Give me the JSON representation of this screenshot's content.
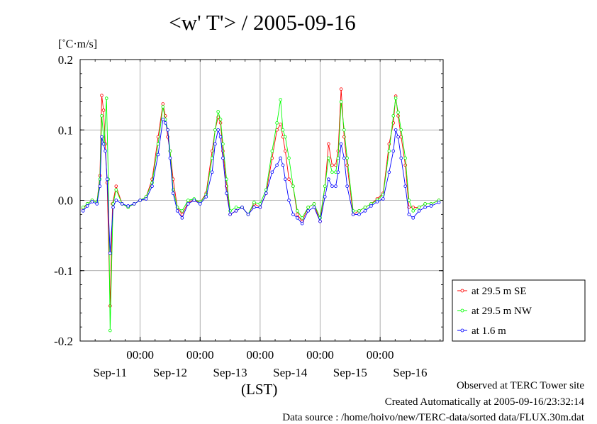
{
  "chart_data": {
    "type": "line",
    "title": "<w' T'> / 2005-09-16",
    "ylabel": "[˚C·m/s]",
    "xlabel": "(LST)",
    "ylim": [
      -0.2,
      0.2
    ],
    "yticks": [
      "0.2",
      "0.1",
      "0.0",
      "-0.1",
      "-0.2"
    ],
    "xlim_days": [
      0,
      6.05
    ],
    "xtick_time_label": "00:00",
    "xtick_times": [
      1,
      2,
      3,
      4,
      5
    ],
    "day_labels": [
      "Sep-11",
      "Sep-12",
      "Sep-13",
      "Sep-14",
      "Sep-15",
      "Sep-16"
    ],
    "day_label_positions": [
      0.5,
      1.5,
      2.5,
      3.5,
      4.5,
      5.5
    ],
    "grid": true,
    "legend_position": "right",
    "series": [
      {
        "name": "at 29.5 m SE",
        "color": "#ff0000",
        "points": [
          [
            0.05,
            -0.012
          ],
          [
            0.12,
            -0.005
          ],
          [
            0.2,
            0
          ],
          [
            0.28,
            -0.003
          ],
          [
            0.33,
            0.035
          ],
          [
            0.36,
            0.149
          ],
          [
            0.39,
            0.128
          ],
          [
            0.42,
            0.08
          ],
          [
            0.45,
            0.025
          ],
          [
            0.5,
            -0.15
          ],
          [
            0.54,
            -0.005
          ],
          [
            0.6,
            0.02
          ],
          [
            0.7,
            -0.005
          ],
          [
            0.8,
            -0.01
          ],
          [
            0.9,
            -0.005
          ],
          [
            1.0,
            0
          ],
          [
            1.1,
            0.005
          ],
          [
            1.2,
            0.03
          ],
          [
            1.3,
            0.09
          ],
          [
            1.38,
            0.137
          ],
          [
            1.42,
            0.12
          ],
          [
            1.46,
            0.09
          ],
          [
            1.5,
            0.07
          ],
          [
            1.55,
            0.03
          ],
          [
            1.62,
            -0.01
          ],
          [
            1.7,
            -0.02
          ],
          [
            1.8,
            -0.003
          ],
          [
            1.9,
            0
          ],
          [
            2.0,
            -0.003
          ],
          [
            2.1,
            0.01
          ],
          [
            2.2,
            0.07
          ],
          [
            2.25,
            0.1
          ],
          [
            2.3,
            0.118
          ],
          [
            2.34,
            0.11
          ],
          [
            2.38,
            0.07
          ],
          [
            2.44,
            0.02
          ],
          [
            2.5,
            -0.02
          ],
          [
            2.6,
            -0.015
          ],
          [
            2.7,
            -0.01
          ],
          [
            2.8,
            -0.02
          ],
          [
            2.9,
            -0.005
          ],
          [
            3.0,
            -0.01
          ],
          [
            3.1,
            0.01
          ],
          [
            3.2,
            0.06
          ],
          [
            3.28,
            0.1
          ],
          [
            3.34,
            0.108
          ],
          [
            3.38,
            0.09
          ],
          [
            3.42,
            0.07
          ],
          [
            3.48,
            0.03
          ],
          [
            3.55,
            0.02
          ],
          [
            3.62,
            -0.02
          ],
          [
            3.7,
            -0.03
          ],
          [
            3.8,
            -0.01
          ],
          [
            3.9,
            -0.005
          ],
          [
            4.0,
            -0.03
          ],
          [
            4.08,
            0.02
          ],
          [
            4.14,
            0.08
          ],
          [
            4.2,
            0.05
          ],
          [
            4.26,
            0.05
          ],
          [
            4.3,
            0.07
          ],
          [
            4.35,
            0.158
          ],
          [
            4.4,
            0.09
          ],
          [
            4.45,
            0.05
          ],
          [
            4.55,
            -0.02
          ],
          [
            4.65,
            -0.015
          ],
          [
            4.75,
            -0.01
          ],
          [
            4.85,
            -0.005
          ],
          [
            4.95,
            0.002
          ],
          [
            5.05,
            0.01
          ],
          [
            5.15,
            0.08
          ],
          [
            5.22,
            0.11
          ],
          [
            5.26,
            0.148
          ],
          [
            5.3,
            0.12
          ],
          [
            5.35,
            0.09
          ],
          [
            5.42,
            0.05
          ],
          [
            5.48,
            -0.01
          ],
          [
            5.55,
            -0.01
          ],
          [
            5.65,
            -0.01
          ],
          [
            5.75,
            -0.005
          ],
          [
            5.85,
            -0.005
          ],
          [
            5.98,
            0
          ]
        ]
      },
      {
        "name": "at 29.5 m NW",
        "color": "#00ff00",
        "points": [
          [
            0.05,
            -0.01
          ],
          [
            0.12,
            -0.005
          ],
          [
            0.2,
            0
          ],
          [
            0.28,
            -0.003
          ],
          [
            0.33,
            0.03
          ],
          [
            0.36,
            0.12
          ],
          [
            0.4,
            0.08
          ],
          [
            0.44,
            0.145
          ],
          [
            0.47,
            0.03
          ],
          [
            0.5,
            -0.185
          ],
          [
            0.55,
            -0.005
          ],
          [
            0.6,
            0.015
          ],
          [
            0.7,
            -0.005
          ],
          [
            0.8,
            -0.01
          ],
          [
            0.9,
            -0.005
          ],
          [
            1.0,
            0
          ],
          [
            1.1,
            0.005
          ],
          [
            1.2,
            0.025
          ],
          [
            1.3,
            0.08
          ],
          [
            1.38,
            0.133
          ],
          [
            1.42,
            0.115
          ],
          [
            1.46,
            0.1
          ],
          [
            1.5,
            0.07
          ],
          [
            1.55,
            0.015
          ],
          [
            1.62,
            -0.01
          ],
          [
            1.7,
            -0.015
          ],
          [
            1.8,
            0
          ],
          [
            1.9,
            0.002
          ],
          [
            2.0,
            -0.003
          ],
          [
            2.1,
            0.008
          ],
          [
            2.2,
            0.06
          ],
          [
            2.25,
            0.1
          ],
          [
            2.3,
            0.126
          ],
          [
            2.34,
            0.115
          ],
          [
            2.38,
            0.08
          ],
          [
            2.44,
            0.03
          ],
          [
            2.5,
            -0.015
          ],
          [
            2.6,
            -0.01
          ],
          [
            2.7,
            -0.01
          ],
          [
            2.8,
            -0.02
          ],
          [
            2.9,
            -0.003
          ],
          [
            3.0,
            -0.005
          ],
          [
            3.1,
            0.015
          ],
          [
            3.2,
            0.07
          ],
          [
            3.28,
            0.11
          ],
          [
            3.34,
            0.143
          ],
          [
            3.38,
            0.1
          ],
          [
            3.42,
            0.09
          ],
          [
            3.48,
            0.06
          ],
          [
            3.55,
            0.02
          ],
          [
            3.62,
            -0.015
          ],
          [
            3.7,
            -0.025
          ],
          [
            3.8,
            -0.01
          ],
          [
            3.9,
            -0.005
          ],
          [
            4.0,
            -0.025
          ],
          [
            4.08,
            0.02
          ],
          [
            4.14,
            0.06
          ],
          [
            4.2,
            0.04
          ],
          [
            4.26,
            0.04
          ],
          [
            4.3,
            0.06
          ],
          [
            4.35,
            0.14
          ],
          [
            4.4,
            0.1
          ],
          [
            4.45,
            0.06
          ],
          [
            4.55,
            -0.015
          ],
          [
            4.65,
            -0.015
          ],
          [
            4.75,
            -0.01
          ],
          [
            4.85,
            -0.005
          ],
          [
            4.95,
            0
          ],
          [
            5.05,
            0.008
          ],
          [
            5.15,
            0.07
          ],
          [
            5.22,
            0.12
          ],
          [
            5.26,
            0.145
          ],
          [
            5.3,
            0.125
          ],
          [
            5.35,
            0.1
          ],
          [
            5.42,
            0.06
          ],
          [
            5.48,
            0
          ],
          [
            5.55,
            -0.015
          ],
          [
            5.65,
            -0.01
          ],
          [
            5.75,
            -0.005
          ],
          [
            5.85,
            -0.005
          ],
          [
            5.98,
            0
          ]
        ]
      },
      {
        "name": "at 1.6 m",
        "color": "#0000ff",
        "points": [
          [
            0.05,
            -0.015
          ],
          [
            0.12,
            -0.008
          ],
          [
            0.2,
            -0.002
          ],
          [
            0.28,
            -0.005
          ],
          [
            0.33,
            0.02
          ],
          [
            0.36,
            0.09
          ],
          [
            0.39,
            0.08
          ],
          [
            0.42,
            0.07
          ],
          [
            0.45,
            0.03
          ],
          [
            0.5,
            -0.075
          ],
          [
            0.55,
            -0.01
          ],
          [
            0.6,
            0
          ],
          [
            0.7,
            -0.005
          ],
          [
            0.8,
            -0.008
          ],
          [
            0.9,
            -0.005
          ],
          [
            1.0,
            0
          ],
          [
            1.1,
            0.002
          ],
          [
            1.2,
            0.02
          ],
          [
            1.3,
            0.065
          ],
          [
            1.38,
            0.115
          ],
          [
            1.42,
            0.11
          ],
          [
            1.46,
            0.1
          ],
          [
            1.5,
            0.06
          ],
          [
            1.55,
            0.01
          ],
          [
            1.62,
            -0.015
          ],
          [
            1.7,
            -0.025
          ],
          [
            1.8,
            -0.005
          ],
          [
            1.9,
            0
          ],
          [
            2.0,
            -0.005
          ],
          [
            2.1,
            0.005
          ],
          [
            2.2,
            0.04
          ],
          [
            2.25,
            0.08
          ],
          [
            2.3,
            0.1
          ],
          [
            2.34,
            0.09
          ],
          [
            2.38,
            0.06
          ],
          [
            2.44,
            0.01
          ],
          [
            2.5,
            -0.02
          ],
          [
            2.6,
            -0.015
          ],
          [
            2.7,
            -0.01
          ],
          [
            2.8,
            -0.02
          ],
          [
            2.9,
            -0.01
          ],
          [
            3.0,
            -0.01
          ],
          [
            3.1,
            0.01
          ],
          [
            3.2,
            0.04
          ],
          [
            3.28,
            0.05
          ],
          [
            3.34,
            0.06
          ],
          [
            3.38,
            0.05
          ],
          [
            3.42,
            0.03
          ],
          [
            3.48,
            0
          ],
          [
            3.55,
            -0.02
          ],
          [
            3.62,
            -0.025
          ],
          [
            3.7,
            -0.033
          ],
          [
            3.8,
            -0.015
          ],
          [
            3.9,
            -0.01
          ],
          [
            4.0,
            -0.03
          ],
          [
            4.08,
            0.005
          ],
          [
            4.14,
            0.03
          ],
          [
            4.2,
            0.02
          ],
          [
            4.26,
            0.02
          ],
          [
            4.3,
            0.04
          ],
          [
            4.35,
            0.08
          ],
          [
            4.4,
            0.06
          ],
          [
            4.45,
            0.02
          ],
          [
            4.55,
            -0.02
          ],
          [
            4.65,
            -0.02
          ],
          [
            4.75,
            -0.015
          ],
          [
            4.85,
            -0.008
          ],
          [
            4.95,
            -0.002
          ],
          [
            5.05,
            0.002
          ],
          [
            5.15,
            0.04
          ],
          [
            5.22,
            0.07
          ],
          [
            5.26,
            0.1
          ],
          [
            5.3,
            0.09
          ],
          [
            5.35,
            0.06
          ],
          [
            5.42,
            0.02
          ],
          [
            5.48,
            -0.02
          ],
          [
            5.55,
            -0.025
          ],
          [
            5.65,
            -0.015
          ],
          [
            5.75,
            -0.01
          ],
          [
            5.85,
            -0.008
          ],
          [
            5.98,
            -0.003
          ]
        ]
      }
    ]
  },
  "footer": {
    "site": "Observed at TERC Tower site",
    "created": "Created Automatically at 2005-09-16/23:32:14",
    "source": "Data source : /home/hoivo/new/TERC-data/sorted  data/FLUX.30m.dat"
  }
}
